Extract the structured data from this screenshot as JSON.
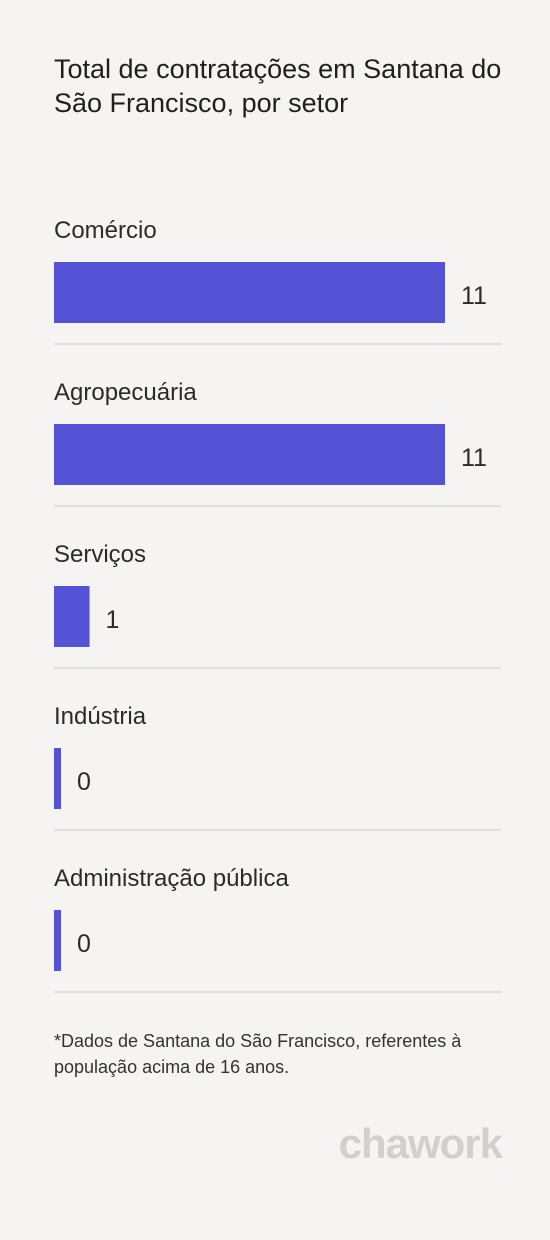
{
  "title": "Total de contratações em Santana do São Francisco, por setor",
  "footnote": "*Dados de Santana do São Francisco, referentes à população acima de 16 anos.",
  "brand": "chawork",
  "colors": {
    "bar": "#5552d6",
    "divider": "#dcdad6",
    "background": "#f5f4f2"
  },
  "chart_data": {
    "type": "bar",
    "orientation": "horizontal",
    "categories": [
      "Comércio",
      "Agropecuária",
      "Serviços",
      "Indústria",
      "Administração pública"
    ],
    "values": [
      11,
      11,
      1,
      0,
      0
    ],
    "xlim": [
      0,
      11
    ],
    "grid": false,
    "legend": "none"
  }
}
